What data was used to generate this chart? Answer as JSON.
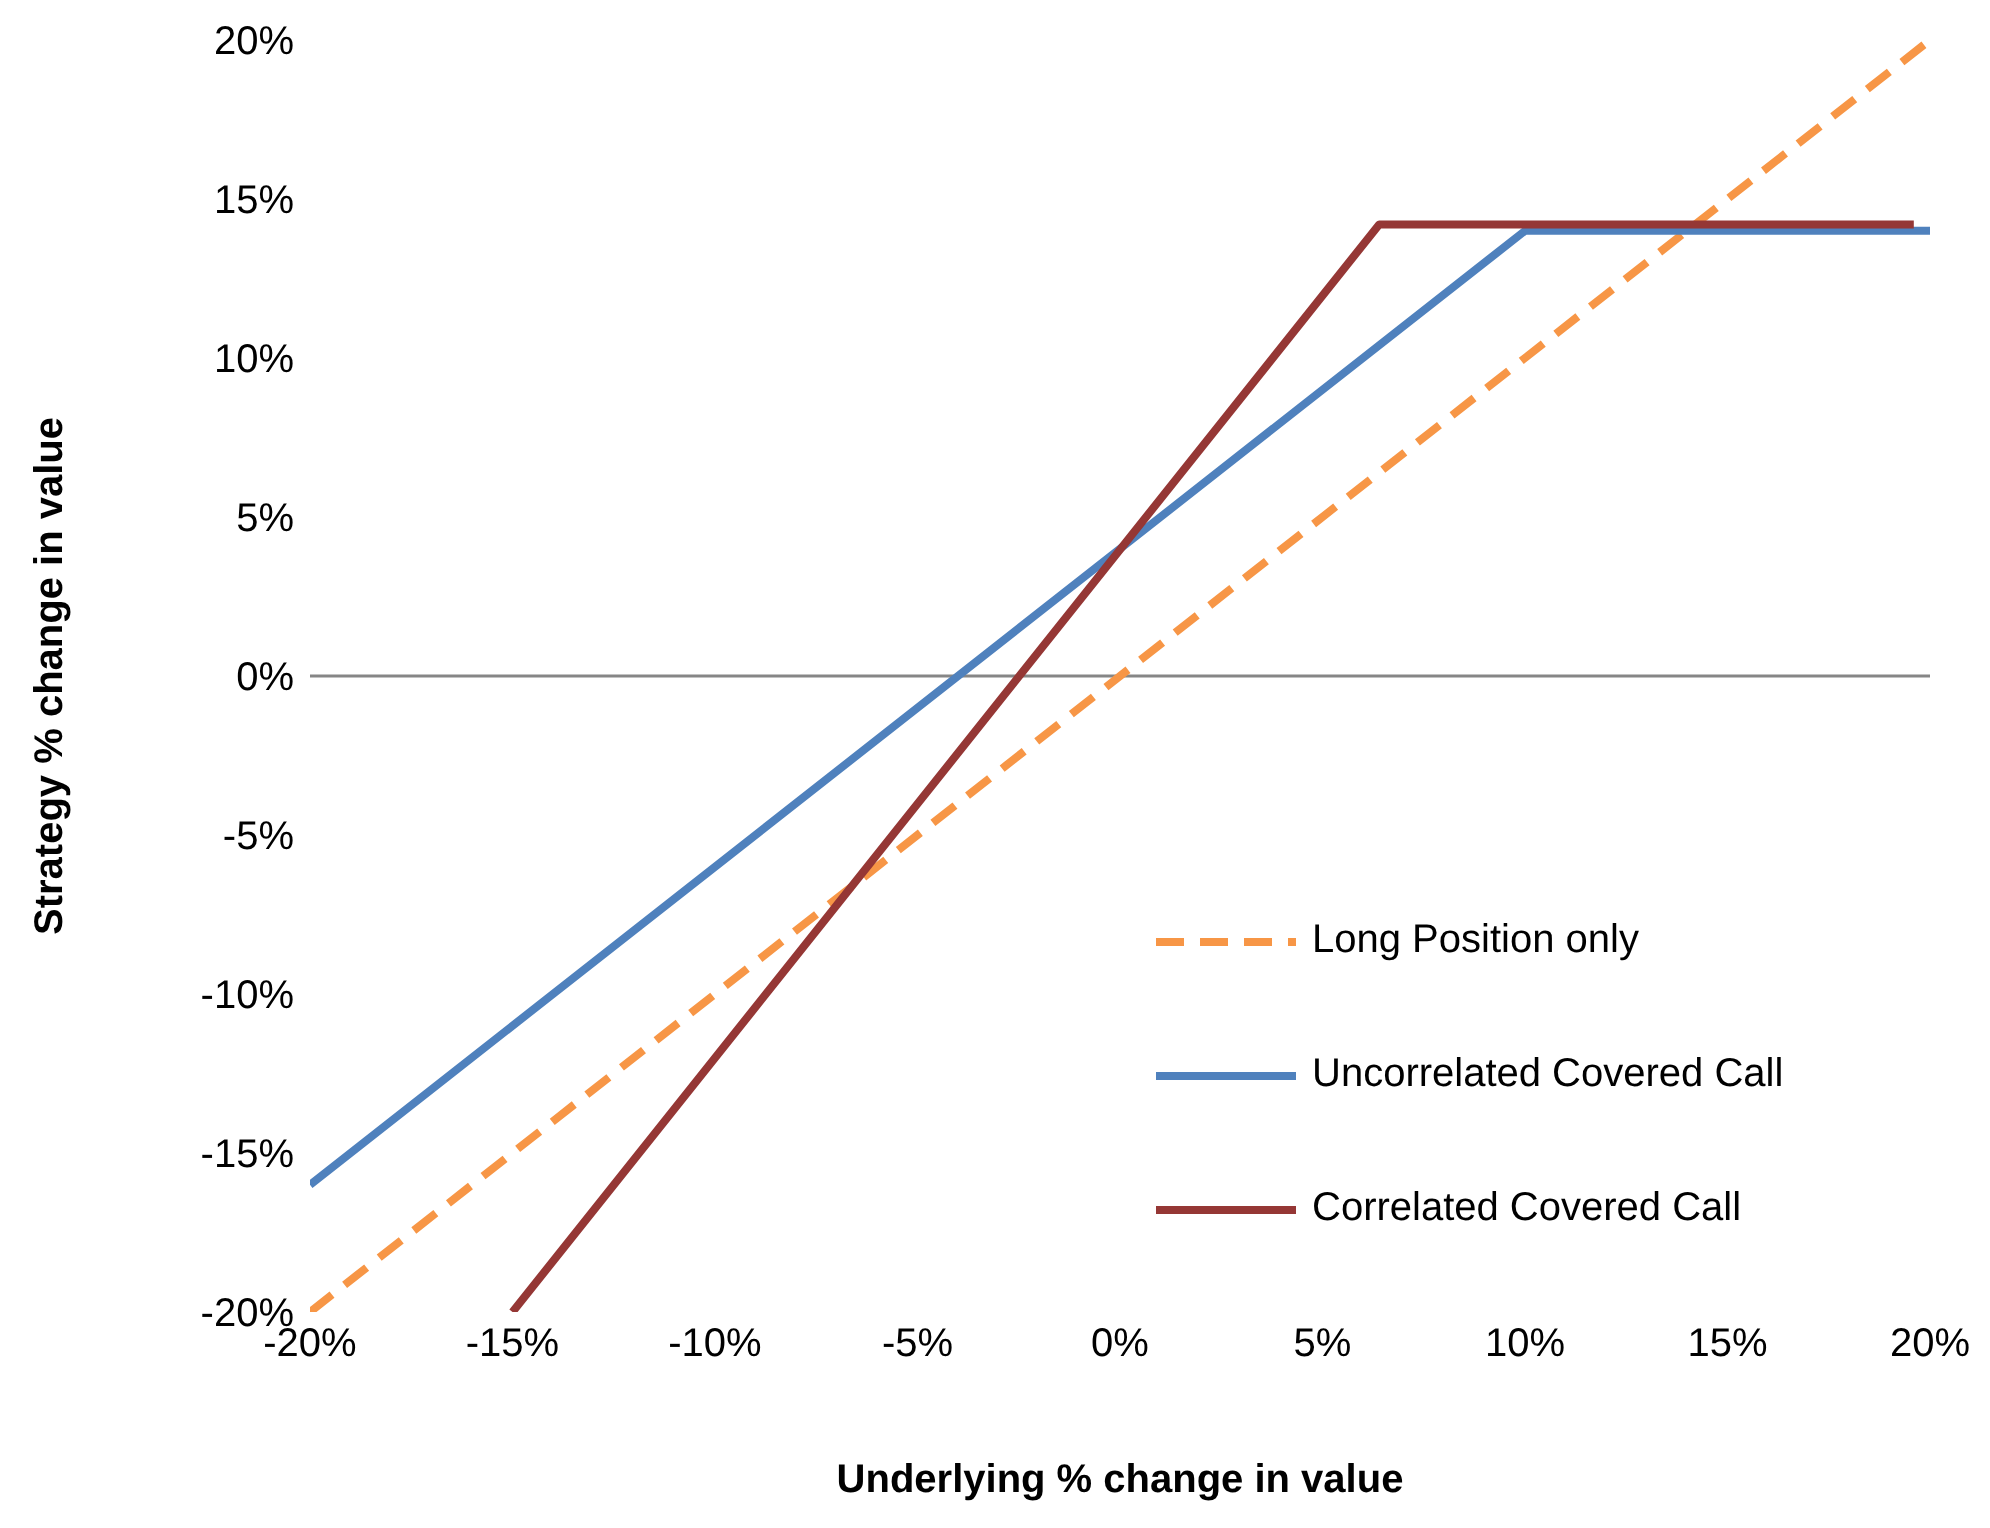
{
  "chart_data": {
    "type": "line",
    "xlabel": "Underlying % change in value",
    "ylabel": "Strategy % change in value",
    "xlim": [
      -20,
      20
    ],
    "ylim": [
      -20,
      20
    ],
    "xticks": [
      {
        "value": -20,
        "label": "-20%"
      },
      {
        "value": -15,
        "label": "-15%"
      },
      {
        "value": -10,
        "label": "-10%"
      },
      {
        "value": -5,
        "label": "-5%"
      },
      {
        "value": 0,
        "label": "0%"
      },
      {
        "value": 5,
        "label": "5%"
      },
      {
        "value": 10,
        "label": "10%"
      },
      {
        "value": 15,
        "label": "15%"
      },
      {
        "value": 20,
        "label": "20%"
      }
    ],
    "yticks": [
      {
        "value": -20,
        "label": "-20%"
      },
      {
        "value": -15,
        "label": "-15%"
      },
      {
        "value": -10,
        "label": "-10%"
      },
      {
        "value": -5,
        "label": "-5%"
      },
      {
        "value": 0,
        "label": "0%"
      },
      {
        "value": 5,
        "label": "5%"
      },
      {
        "value": 10,
        "label": "10%"
      },
      {
        "value": 15,
        "label": "15%"
      },
      {
        "value": 20,
        "label": "20%"
      }
    ],
    "series": [
      {
        "name": "Long Position only",
        "color": "#f79646",
        "line_style": "dashed",
        "x": [
          -20,
          20
        ],
        "values": [
          -20,
          20
        ]
      },
      {
        "name": "Uncorrelated Covered Call",
        "color": "#4f81bd",
        "line_style": "solid",
        "x": [
          -20,
          10,
          20
        ],
        "values": [
          -16,
          14,
          14
        ]
      },
      {
        "name": "Correlated Covered Call",
        "color": "#953735",
        "line_style": "solid",
        "x": [
          -15,
          6.4,
          19.6
        ],
        "values": [
          -20,
          14.2,
          14.2
        ]
      }
    ],
    "ref_lines": [
      {
        "axis": "y",
        "value": 0,
        "color": "#868686"
      }
    ],
    "grid": false,
    "legend": "bottom right",
    "marker": "none"
  }
}
